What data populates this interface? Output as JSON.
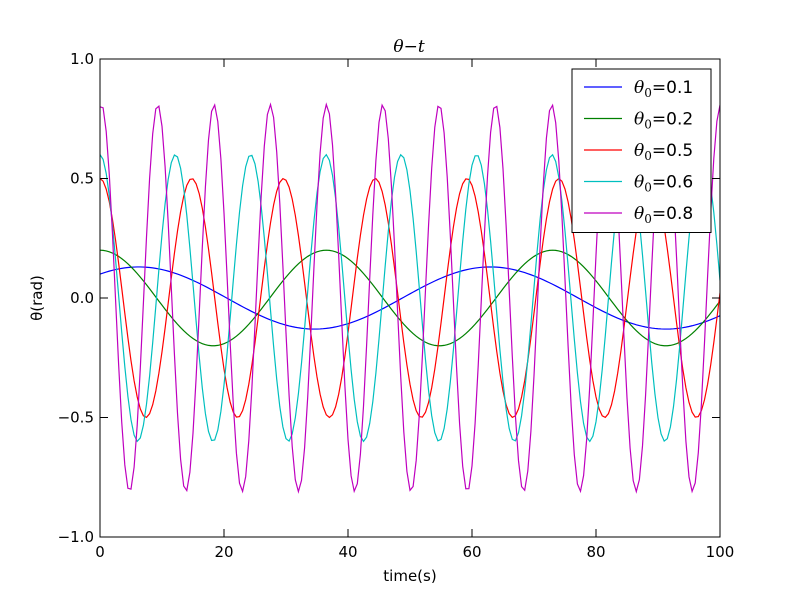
{
  "chart_data": {
    "type": "line",
    "title": "θ−t",
    "xlabel": "time(s)",
    "ylabel": "θ(rad)",
    "xlim": [
      0,
      100
    ],
    "ylim": [
      -1.0,
      1.0
    ],
    "x_ticks": [
      0,
      20,
      40,
      60,
      80,
      100
    ],
    "x_tick_labels": [
      "0",
      "20",
      "40",
      "60",
      "80",
      "100"
    ],
    "y_ticks": [
      -1.0,
      -0.5,
      0.0,
      0.5,
      1.0
    ],
    "y_tick_labels": [
      "−1.0",
      "−0.5",
      "0.0",
      "0.5",
      "1.0"
    ],
    "grid": false,
    "legend_position": "top-right",
    "series": [
      {
        "name": "θ0=0.1",
        "legend_base": "θ",
        "legend_sub": "0",
        "legend_value": "=0.1",
        "color": "#0000ff",
        "amplitude": 0.13,
        "x_start": 0,
        "y_start": 0.1,
        "period_s": 56.7
      },
      {
        "name": "θ0=0.2",
        "legend_base": "θ",
        "legend_sub": "0",
        "legend_value": "=0.2",
        "color": "#008000",
        "amplitude": 0.2,
        "x_start": 0,
        "y_start": 0.2,
        "period_s": 36.5
      },
      {
        "name": "θ0=0.5",
        "legend_base": "θ",
        "legend_sub": "0",
        "legend_value": "=0.5",
        "color": "#ff0000",
        "amplitude": 0.5,
        "x_start": 0,
        "y_start": 0.5,
        "period_s": 14.8
      },
      {
        "name": "θ0=0.6",
        "legend_base": "θ",
        "legend_sub": "0",
        "legend_value": "=0.6",
        "color": "#00bfbf",
        "amplitude": 0.6,
        "x_start": 0,
        "y_start": 0.6,
        "period_s": 12.15
      },
      {
        "name": "θ0=0.8",
        "legend_base": "θ",
        "legend_sub": "0",
        "legend_value": "=0.8",
        "color": "#bf00bf",
        "amplitude": 0.81,
        "x_start": 0,
        "y_start": 0.8,
        "period_s": 9.08
      }
    ]
  }
}
